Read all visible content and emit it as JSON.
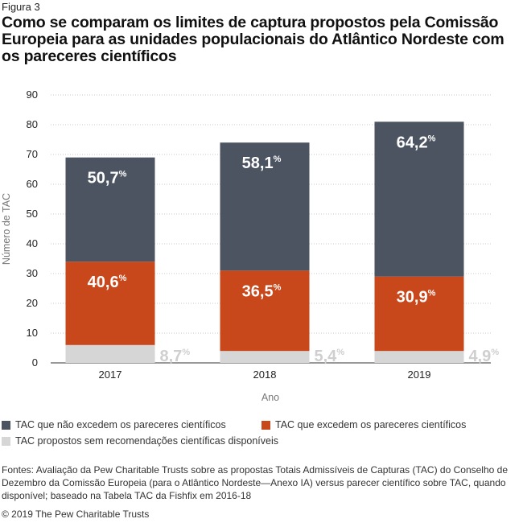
{
  "figure_label": "Figura 3",
  "title": "Como se comparam os limites de captura propostos pela Comissão Europeia para as unidades populacionais do Atlântico Nordeste com os pareceres científicos",
  "legend": {
    "item1": "TAC que não excedem os pareceres científicos",
    "item2": "TAC que excedem os pareceres científicos",
    "item3": "TAC propostos sem recomendações científicas disponíveis"
  },
  "sources": "Fontes: Avaliação da Pew Charitable Trusts sobre as propostas Totais Admissíveis de Capturas (TAC) do Conselho de Dezembro da Comissão Europeia (para o Atlântico Nordeste—Anexo IA) versus parecer científico sobre TAC, quando disponível; baseado na Tabela TAC da Fishfix em 2016-18",
  "copyright": "© 2019 The Pew Charitable Trusts",
  "colors": {
    "not_exceed": "#4d5461",
    "exceed": "#c8471b",
    "no_advice": "#d6d6d6",
    "no_advice_label": "#cfcfcf"
  },
  "chart_data": {
    "type": "bar",
    "stacked": true,
    "categories": [
      "2017",
      "2018",
      "2019"
    ],
    "xlabel": "Ano",
    "ylabel": "Número de TAC",
    "ylim": [
      0,
      90
    ],
    "yticks": [
      0,
      10,
      20,
      30,
      40,
      50,
      60,
      70,
      80,
      90
    ],
    "grid": true,
    "series": [
      {
        "name": "TAC propostos sem recomendações científicas disponíveis",
        "values": [
          6,
          4,
          4
        ],
        "labels": [
          "8,7",
          "5,4",
          "4,9"
        ]
      },
      {
        "name": "TAC que excedem os pareceres científicos",
        "values": [
          28,
          27,
          25
        ],
        "labels": [
          "40,6",
          "36,5",
          "30,9"
        ]
      },
      {
        "name": "TAC que não excedem os pareceres científicos",
        "values": [
          35,
          43,
          52
        ],
        "labels": [
          "50,7",
          "58,1",
          "64,2"
        ]
      }
    ],
    "label_suffix": "%"
  }
}
